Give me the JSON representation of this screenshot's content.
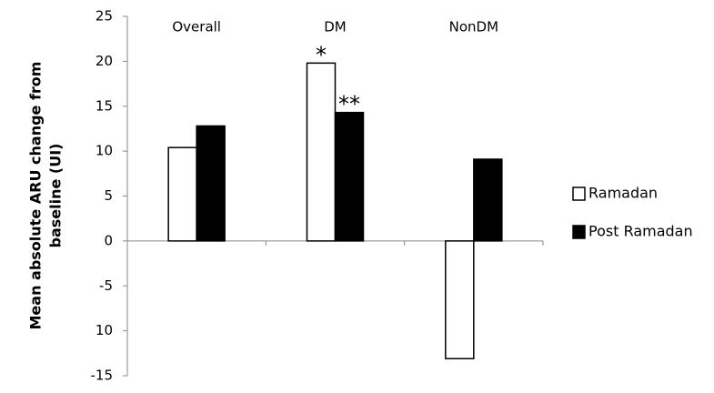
{
  "chart_data": {
    "type": "bar",
    "ylabel": [
      "Mean absolute ARU change from",
      "baseline (UI)"
    ],
    "categories": [
      "Overall",
      "DM",
      "NonDM"
    ],
    "series": [
      {
        "name": "Ramadan",
        "color": "#ffffff",
        "values": [
          10.4,
          19.8,
          -13.1
        ]
      },
      {
        "name": "Post Ramadan",
        "color": "#000000",
        "values": [
          12.8,
          14.3,
          9.1
        ]
      }
    ],
    "annotations": [
      {
        "text": "*",
        "category": "DM",
        "series": "Ramadan"
      },
      {
        "text": "**",
        "category": "DM",
        "series": "Post Ramadan"
      }
    ],
    "ylim": [
      -15,
      25
    ],
    "yticks": [
      -15,
      {
        "value": -10,
        "label": "10"
      },
      -5,
      0,
      5,
      10,
      15,
      20,
      25
    ],
    "legend": "right"
  }
}
